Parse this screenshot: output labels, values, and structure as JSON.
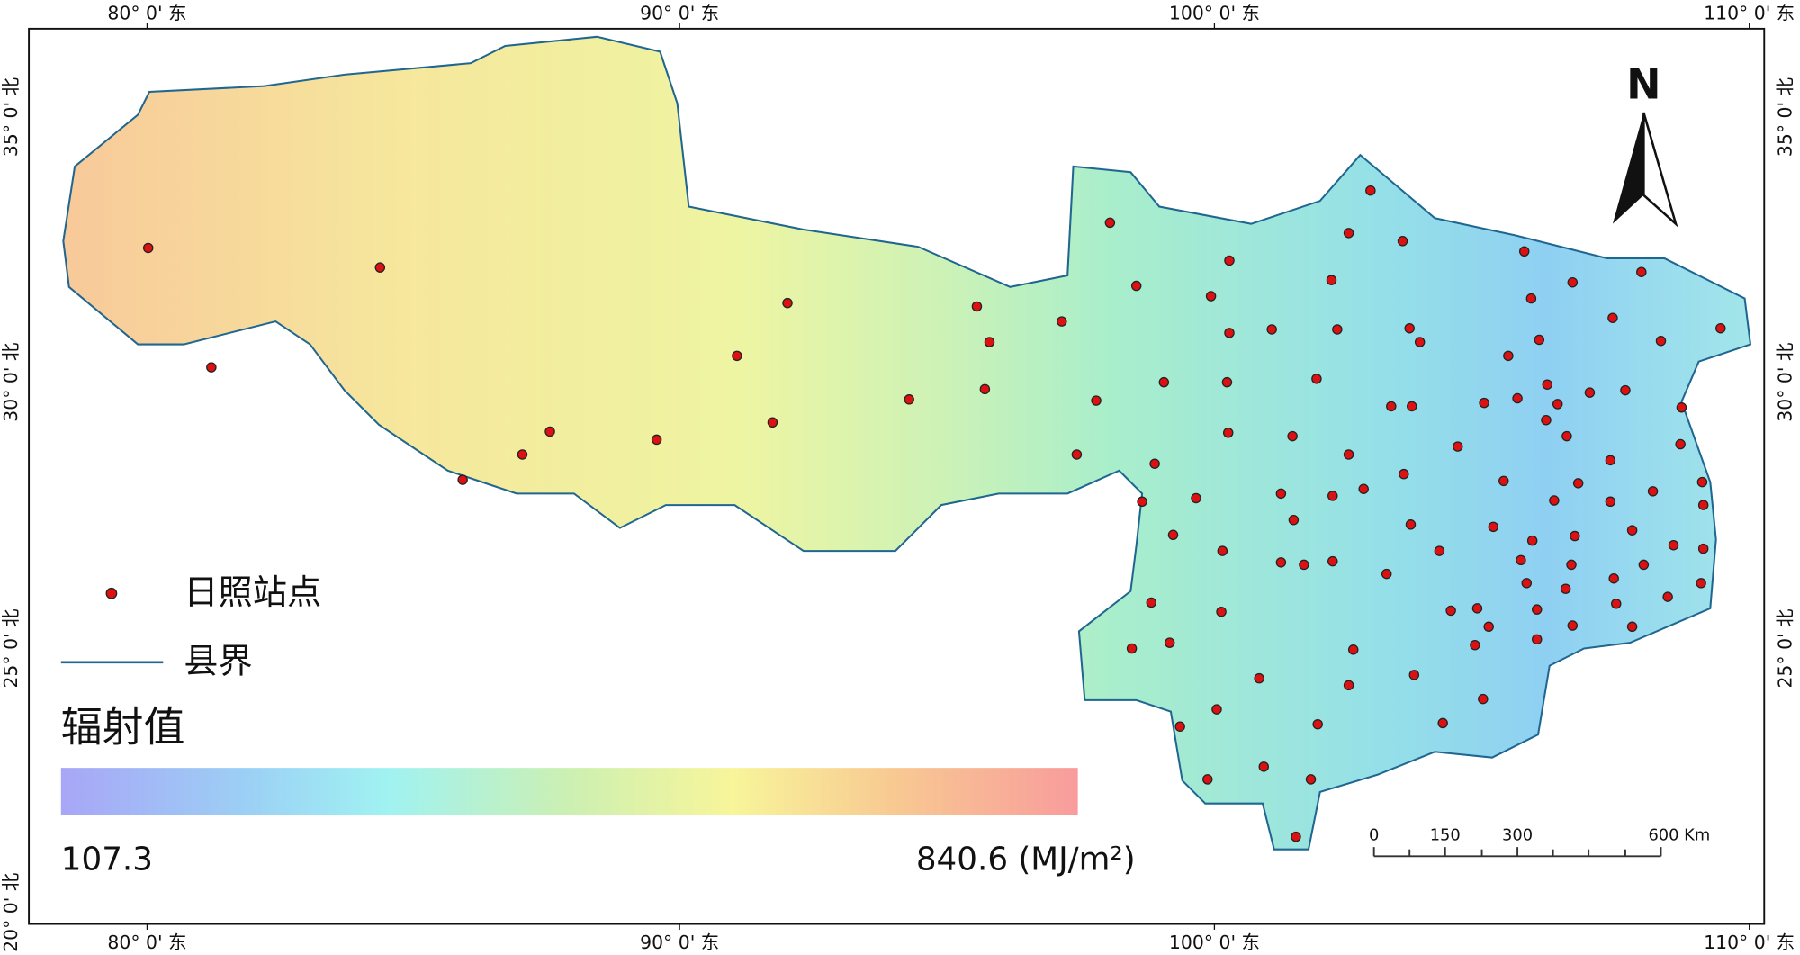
{
  "graticule": {
    "top": [
      "80° 0' 东",
      "90° 0' 东",
      "100° 0' 东",
      "110° 0' 东"
    ],
    "bottom": [
      "80° 0' 东",
      "90° 0' 东",
      "100° 0' 东",
      "110° 0' 东"
    ],
    "left": [
      "35° 0' 北",
      "30° 0' 北",
      "25° 0' 北",
      "20° 0' 北"
    ],
    "right": [
      "35° 0' 北",
      "30° 0' 北",
      "25° 0' 北"
    ]
  },
  "north_arrow": {
    "label": "N"
  },
  "legend": {
    "station": "日照站点",
    "boundary": "县界",
    "ramp_title": "辐射值",
    "min": "107.3",
    "max": "840.6 (MJ/m²)"
  },
  "scale_bar": {
    "labels": [
      "0",
      "150",
      "300",
      "600 Km"
    ]
  }
}
